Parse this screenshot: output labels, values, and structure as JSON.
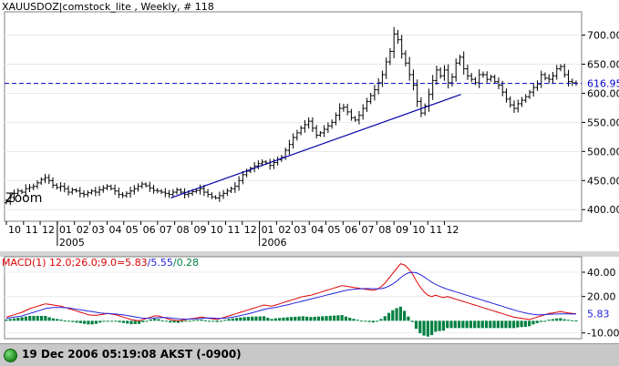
{
  "chart_title": "XAUUSDOZ|comstock_lite , Weekly, # 118",
  "zoom_label": "Zoom",
  "status": {
    "datetime": "19 Dec 2006 05:19:08  AKST (-0900)"
  },
  "colors": {
    "price_bar": "#000000",
    "hline": "#0000cc",
    "trendline": "#0000aa",
    "macd": "#dd0000",
    "signal": "#2222dd",
    "hist": "#008040",
    "panel_bg": "#ffffff"
  },
  "chart_data": [
    {
      "type": "bar",
      "subtype": "ohlc",
      "title": "XAUUSDOZ|comstock_lite , Weekly, # 118",
      "ylim": [
        380,
        740
      ],
      "y_ticks": [
        400,
        450,
        500,
        550,
        600,
        650,
        700
      ],
      "y_tick_labels": [
        "400.00",
        "450.00",
        "500.00",
        "550.00",
        "600.00",
        "650.00",
        "700.00"
      ],
      "last_value": 616.95,
      "last_value_label": "616.95",
      "x_tick_labels": [
        "10",
        "11",
        "12",
        "01",
        "02",
        "03",
        "04",
        "05",
        "06",
        "07",
        "08",
        "09",
        "10",
        "11",
        "12",
        "01",
        "02",
        "03",
        "04",
        "05",
        "06",
        "07",
        "08",
        "09",
        "10",
        "11",
        "12"
      ],
      "year_labels": [
        {
          "label": "2005",
          "month_index": 3
        },
        {
          "label": "2006",
          "month_index": 15
        }
      ],
      "x_start": "2004-10-01",
      "trendline": {
        "start": [
          "2005-07-25",
          420
        ],
        "end": [
          "2006-12-31",
          598
        ]
      },
      "closes": [
        415,
        421,
        428,
        432,
        430,
        436,
        438,
        440,
        446,
        452,
        455,
        450,
        442,
        438,
        440,
        436,
        430,
        434,
        432,
        428,
        426,
        429,
        432,
        430,
        434,
        437,
        440,
        436,
        432,
        426,
        424,
        428,
        432,
        436,
        440,
        444,
        441,
        437,
        433,
        432,
        430,
        428,
        426,
        430,
        434,
        430,
        426,
        428,
        431,
        433,
        436,
        430,
        426,
        422,
        420,
        424,
        428,
        432,
        436,
        440,
        450,
        460,
        466,
        471,
        475,
        479,
        482,
        480,
        476,
        481,
        486,
        490,
        502,
        512,
        524,
        532,
        540,
        546,
        552,
        540,
        528,
        532,
        538,
        544,
        550,
        562,
        574,
        576,
        568,
        558,
        554,
        562,
        574,
        586,
        596,
        606,
        618,
        632,
        654,
        672,
        702,
        692,
        668,
        652,
        632,
        614,
        586,
        566,
        578,
        598,
        622,
        640,
        630,
        640,
        618,
        628,
        652,
        662,
        642,
        630,
        624,
        618,
        632,
        632,
        624,
        628,
        620,
        614,
        602,
        590,
        580,
        574,
        582,
        588,
        594,
        602,
        610,
        616,
        632,
        626,
        624,
        630,
        642,
        646,
        632,
        620,
        618,
        616.95
      ]
    },
    {
      "type": "line",
      "title": "MACD(1) 12.0;26.0;9.0=5.83/5.55/0.28",
      "legend_parts": [
        "MACD(1) 12.0;26.0;9.0=5.83",
        "/5.55",
        "/0.28"
      ],
      "ylim": [
        -14,
        52
      ],
      "y_ticks": [
        40,
        20,
        -10
      ],
      "y_tick_labels": [
        "40.00",
        "20.00",
        "-10.00"
      ],
      "last_value_label": "5.83",
      "series": [
        {
          "name": "MACD",
          "values": [
            3.0,
            4.0,
            5.0,
            6.0,
            7.0,
            8.5,
            10.0,
            11.0,
            12.0,
            13.0,
            14.0,
            13.5,
            13.0,
            12.5,
            12.0,
            11.0,
            10.0,
            9.0,
            8.0,
            7.0,
            6.0,
            5.0,
            4.5,
            4.5,
            5.0,
            5.5,
            6.0,
            5.5,
            5.0,
            4.0,
            3.0,
            2.0,
            1.0,
            0.5,
            0.0,
            1.0,
            2.0,
            3.0,
            4.0,
            4.0,
            3.0,
            2.0,
            1.0,
            0.5,
            0.0,
            0.5,
            1.0,
            1.5,
            2.0,
            2.5,
            3.0,
            2.5,
            2.0,
            1.5,
            1.0,
            2.0,
            3.0,
            4.0,
            5.0,
            6.0,
            7.0,
            8.0,
            9.0,
            10.0,
            11.0,
            12.0,
            13.0,
            12.5,
            12.0,
            13.0,
            14.0,
            15.0,
            16.0,
            17.0,
            18.0,
            19.0,
            20.0,
            20.5,
            21.0,
            22.0,
            23.0,
            24.0,
            25.0,
            26.0,
            27.0,
            28.0,
            29.0,
            28.5,
            28.0,
            27.5,
            27.0,
            26.5,
            26.0,
            25.5,
            25.0,
            26.0,
            28.0,
            31.0,
            35.0,
            39.0,
            43.0,
            47.0,
            46.0,
            43.0,
            39.0,
            33.0,
            28.0,
            24.0,
            21.0,
            20.0,
            21.0,
            20.0,
            19.0,
            20.0,
            19.0,
            18.0,
            17.0,
            16.0,
            15.0,
            14.0,
            13.0,
            12.0,
            11.0,
            10.0,
            9.0,
            8.0,
            7.0,
            6.0,
            5.0,
            4.0,
            3.0,
            2.5,
            2.0,
            1.5,
            1.0,
            2.0,
            3.0,
            4.0,
            5.0,
            6.0,
            6.5,
            7.0,
            7.5,
            7.0,
            6.5,
            6.0,
            5.83
          ]
        },
        {
          "name": "Signal",
          "values": [
            2.0,
            2.5,
            3.0,
            3.5,
            4.0,
            5.0,
            6.0,
            7.0,
            8.0,
            9.0,
            10.0,
            10.5,
            11.0,
            11.0,
            11.0,
            10.8,
            10.5,
            10.0,
            9.5,
            9.0,
            8.5,
            8.0,
            7.5,
            7.0,
            6.5,
            6.2,
            6.0,
            5.8,
            5.6,
            5.2,
            4.8,
            4.3,
            3.8,
            3.2,
            2.6,
            2.2,
            2.0,
            2.0,
            2.3,
            2.6,
            2.7,
            2.6,
            2.4,
            2.0,
            1.7,
            1.5,
            1.4,
            1.4,
            1.5,
            1.7,
            2.0,
            2.2,
            2.3,
            2.2,
            2.0,
            2.0,
            2.2,
            2.5,
            3.0,
            3.6,
            4.3,
            5.0,
            5.8,
            6.6,
            7.5,
            8.4,
            9.3,
            10.0,
            10.5,
            11.0,
            11.7,
            12.4,
            13.1,
            13.9,
            14.7,
            15.5,
            16.3,
            17.1,
            17.9,
            18.7,
            19.5,
            20.3,
            21.1,
            21.9,
            22.7,
            23.5,
            24.3,
            25.0,
            25.5,
            25.9,
            26.2,
            26.4,
            26.5,
            26.5,
            26.4,
            26.3,
            26.5,
            27.2,
            28.5,
            30.3,
            32.6,
            35.4,
            37.8,
            39.5,
            40.0,
            39.6,
            38.2,
            36.2,
            34.0,
            31.8,
            30.0,
            28.5,
            27.2,
            26.0,
            25.0,
            24.0,
            23.0,
            22.0,
            21.0,
            20.0,
            19.0,
            18.0,
            17.0,
            16.0,
            15.0,
            14.0,
            13.0,
            12.0,
            11.0,
            10.0,
            9.0,
            8.0,
            7.2,
            6.5,
            5.8,
            5.3,
            5.0,
            5.0,
            5.1,
            5.3,
            5.5,
            5.6,
            5.7,
            5.7,
            5.7,
            5.6,
            5.55
          ]
        },
        {
          "name": "Histogram",
          "type": "bar",
          "values": [
            1.0,
            1.5,
            2.0,
            2.5,
            3.0,
            3.5,
            4.0,
            4.0,
            4.0,
            4.0,
            4.0,
            3.0,
            2.0,
            1.5,
            1.0,
            0.2,
            -0.5,
            -1.0,
            -1.5,
            -2.0,
            -2.5,
            -3.0,
            -3.0,
            -2.5,
            -1.5,
            -0.7,
            0.0,
            -0.3,
            -0.6,
            -1.2,
            -1.8,
            -2.3,
            -2.8,
            -2.7,
            -2.6,
            -1.2,
            0.0,
            1.0,
            1.7,
            1.4,
            0.3,
            -0.6,
            -1.4,
            -1.5,
            -1.7,
            -1.0,
            -0.4,
            0.1,
            0.5,
            0.8,
            1.0,
            0.3,
            -0.3,
            -0.7,
            -1.0,
            0.0,
            0.8,
            1.5,
            2.0,
            2.4,
            2.7,
            3.0,
            3.2,
            3.4,
            3.5,
            3.6,
            3.7,
            2.5,
            1.5,
            2.0,
            2.3,
            2.6,
            2.9,
            3.1,
            3.3,
            3.5,
            3.7,
            3.4,
            3.1,
            3.3,
            3.5,
            3.7,
            3.9,
            4.1,
            4.3,
            4.5,
            4.7,
            3.5,
            2.5,
            1.6,
            0.8,
            0.1,
            -0.5,
            -1.0,
            -1.4,
            -0.3,
            1.5,
            3.8,
            6.5,
            8.7,
            10.4,
            11.6,
            8.2,
            3.5,
            -1.0,
            -6.6,
            -10.2,
            -12.2,
            -13.0,
            -11.8,
            -9.0,
            -8.5,
            -8.2,
            -6.0,
            -6.0,
            -6.0,
            -6.0,
            -6.0,
            -6.0,
            -6.0,
            -6.0,
            -6.0,
            -6.0,
            -6.0,
            -6.0,
            -6.0,
            -6.0,
            -6.0,
            -6.0,
            -6.0,
            -6.0,
            -5.5,
            -5.2,
            -5.0,
            -4.5,
            -3.0,
            -2.0,
            -1.0,
            0.0,
            0.9,
            1.4,
            1.9,
            2.2,
            1.3,
            0.8,
            0.4,
            0.28
          ]
        }
      ]
    }
  ]
}
